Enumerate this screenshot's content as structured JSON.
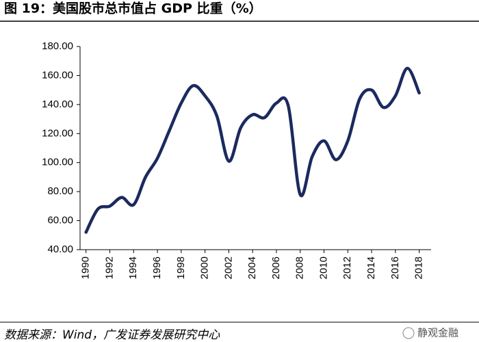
{
  "chart_data": {
    "type": "line",
    "title": "图 19：美国股市总市值占 GDP 比重（%）",
    "source": "数据来源：Wind，广发证券发展研究中心",
    "watermark": "静观金融",
    "x": [
      1990,
      1991,
      1992,
      1993,
      1994,
      1995,
      1996,
      1997,
      1998,
      1999,
      2000,
      2001,
      2002,
      2003,
      2004,
      2005,
      2006,
      2007,
      2008,
      2009,
      2010,
      2011,
      2012,
      2013,
      2014,
      2015,
      2016,
      2017,
      2018
    ],
    "series": [
      {
        "color": "#1b2a5e",
        "values": [
          52,
          68,
          70,
          76,
          71,
          90,
          103,
          122,
          141,
          153,
          146,
          132,
          101,
          124,
          133,
          131,
          141,
          139,
          78,
          104,
          115,
          102,
          115,
          144,
          150,
          138,
          146,
          165,
          148
        ]
      }
    ],
    "xlim": [
      1989.5,
      2019
    ],
    "xticks": [
      1990,
      1992,
      1994,
      1996,
      1998,
      2000,
      2002,
      2004,
      2006,
      2008,
      2010,
      2012,
      2014,
      2016,
      2018
    ],
    "ylim": [
      40,
      180
    ],
    "yticks": [
      {
        "value": 40,
        "label": "40.00"
      },
      {
        "value": 60,
        "label": "60.00"
      },
      {
        "value": 80,
        "label": "80.00"
      },
      {
        "value": 100,
        "label": "100.00"
      },
      {
        "value": 120,
        "label": "120.00"
      },
      {
        "value": 140,
        "label": "140.00"
      },
      {
        "value": 160,
        "label": "160.00"
      },
      {
        "value": 180,
        "label": "180.00"
      }
    ],
    "grid": false
  }
}
